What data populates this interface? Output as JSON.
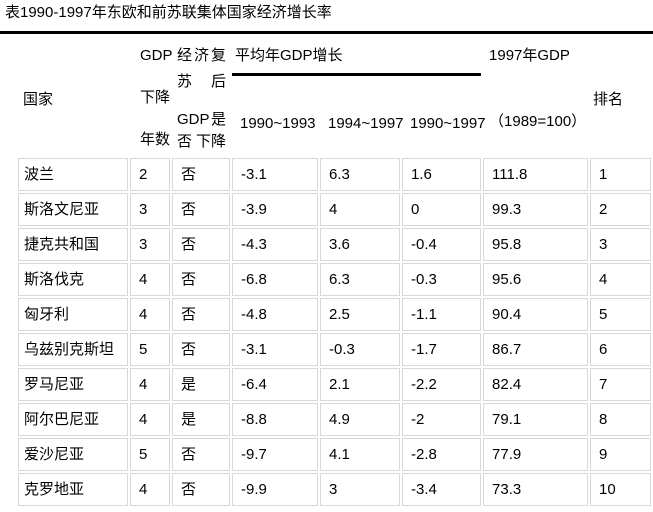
{
  "page_title": "表1990-1997年东欧和前苏联集体国家经济增长率",
  "colors": {
    "background": "#ffffff",
    "text": "#000000",
    "title_rule": "#000000",
    "cell_border": "#d8d8d8"
  },
  "table": {
    "column_keys": [
      "country",
      "gdp_decline_years",
      "gdp_declined_after_recovery",
      "avg_growth_1990_1993",
      "avg_growth_1994_1997",
      "avg_growth_1990_1997",
      "gdp_1997_index",
      "rank"
    ],
    "header": {
      "country": "国家",
      "gdp_decline_years_lines": [
        "GDP",
        "下降",
        "年数"
      ],
      "recovery_lines": [
        [
          "经",
          "济",
          "复"
        ],
        [
          "苏",
          "后"
        ],
        [
          "GDP",
          "是"
        ],
        [
          "否",
          "下降"
        ]
      ],
      "avg_growth_group": "平均年GDP增长",
      "period_1990_1993": "1990~1993",
      "period_1994_1997": "1994~1997",
      "period_1990_1997": "1990~1997",
      "gdp_1997_title": "1997年GDP",
      "gdp_1997_base": "（1989=100）",
      "rank": "排名"
    },
    "rows": [
      {
        "country": "波兰",
        "gdp_decline_years": "2",
        "gdp_declined_after_recovery": "否",
        "avg_growth_1990_1993": "-3.1",
        "avg_growth_1994_1997": "6.3",
        "avg_growth_1990_1997": "1.6",
        "gdp_1997_index": "111.8",
        "rank": "1"
      },
      {
        "country": "斯洛文尼亚",
        "gdp_decline_years": "3",
        "gdp_declined_after_recovery": "否",
        "avg_growth_1990_1993": "-3.9",
        "avg_growth_1994_1997": "4",
        "avg_growth_1990_1997": "0",
        "gdp_1997_index": "99.3",
        "rank": "2"
      },
      {
        "country": "捷克共和国",
        "gdp_decline_years": "3",
        "gdp_declined_after_recovery": "否",
        "avg_growth_1990_1993": "-4.3",
        "avg_growth_1994_1997": "3.6",
        "avg_growth_1990_1997": "-0.4",
        "gdp_1997_index": "95.8",
        "rank": "3"
      },
      {
        "country": "斯洛伐克",
        "gdp_decline_years": "4",
        "gdp_declined_after_recovery": "否",
        "avg_growth_1990_1993": "-6.8",
        "avg_growth_1994_1997": "6.3",
        "avg_growth_1990_1997": "-0.3",
        "gdp_1997_index": "95.6",
        "rank": "4"
      },
      {
        "country": "匈牙利",
        "gdp_decline_years": "4",
        "gdp_declined_after_recovery": "否",
        "avg_growth_1990_1993": "-4.8",
        "avg_growth_1994_1997": "2.5",
        "avg_growth_1990_1997": "-1.1",
        "gdp_1997_index": "90.4",
        "rank": "5"
      },
      {
        "country": "乌兹别克斯坦",
        "gdp_decline_years": "5",
        "gdp_declined_after_recovery": "否",
        "avg_growth_1990_1993": "-3.1",
        "avg_growth_1994_1997": "-0.3",
        "avg_growth_1990_1997": "-1.7",
        "gdp_1997_index": "86.7",
        "rank": "6"
      },
      {
        "country": "罗马尼亚",
        "gdp_decline_years": "4",
        "gdp_declined_after_recovery": "是",
        "avg_growth_1990_1993": "-6.4",
        "avg_growth_1994_1997": "2.1",
        "avg_growth_1990_1997": "-2.2",
        "gdp_1997_index": "82.4",
        "rank": "7"
      },
      {
        "country": "阿尔巴尼亚",
        "gdp_decline_years": "4",
        "gdp_declined_after_recovery": "是",
        "avg_growth_1990_1993": "-8.8",
        "avg_growth_1994_1997": "4.9",
        "avg_growth_1990_1997": "-2",
        "gdp_1997_index": "79.1",
        "rank": "8"
      },
      {
        "country": "爱沙尼亚",
        "gdp_decline_years": "5",
        "gdp_declined_after_recovery": "否",
        "avg_growth_1990_1993": "-9.7",
        "avg_growth_1994_1997": "4.1",
        "avg_growth_1990_1997": "-2.8",
        "gdp_1997_index": "77.9",
        "rank": "9"
      },
      {
        "country": "克罗地亚",
        "gdp_decline_years": "4",
        "gdp_declined_after_recovery": "否",
        "avg_growth_1990_1993": "-9.9",
        "avg_growth_1994_1997": "3",
        "avg_growth_1990_1997": "-3.4",
        "gdp_1997_index": "73.3",
        "rank": "10"
      }
    ]
  }
}
